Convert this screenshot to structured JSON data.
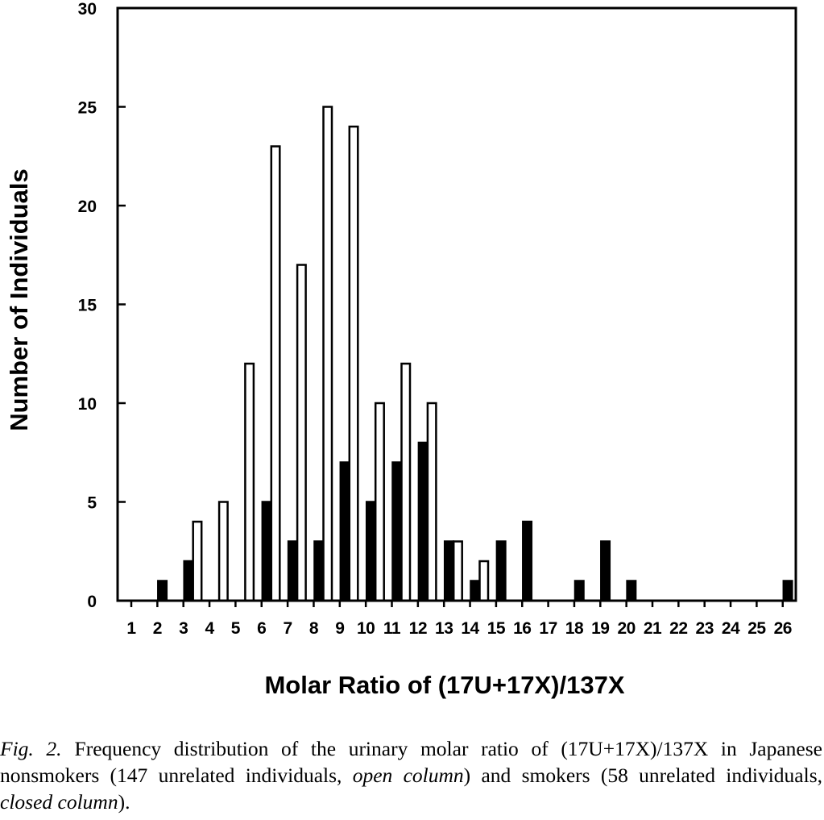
{
  "chart_data": {
    "type": "bar",
    "xlabel": "Molar Ratio of (17U+17X)/137X",
    "ylabel": "Number of Individuals",
    "ylim": [
      0,
      30
    ],
    "yticks": [
      0,
      5,
      10,
      15,
      20,
      25,
      30
    ],
    "categories": [
      "1",
      "2",
      "3",
      "4",
      "5",
      "6",
      "7",
      "8",
      "9",
      "10",
      "11",
      "12",
      "13",
      "14",
      "15",
      "16",
      "17",
      "18",
      "19",
      "20",
      "21",
      "22",
      "23",
      "24",
      "25",
      "26"
    ],
    "grid": false,
    "series": [
      {
        "style": "closed",
        "color": "#000000",
        "values": [
          0,
          1,
          2,
          0,
          0,
          5,
          3,
          3,
          7,
          5,
          7,
          8,
          3,
          1,
          3,
          4,
          0,
          1,
          3,
          1,
          0,
          0,
          0,
          0,
          0,
          1
        ]
      },
      {
        "style": "open",
        "color": "#ffffff",
        "values": [
          0,
          0,
          4,
          5,
          12,
          23,
          17,
          25,
          24,
          10,
          12,
          10,
          3,
          2,
          0,
          0,
          0,
          0,
          0,
          0,
          0,
          0,
          0,
          0,
          0,
          0
        ]
      }
    ]
  },
  "caption": {
    "fig_label": "Fig. 2.",
    "text_1": "Frequency distribution of the urinary molar ratio of (17U+17X)/137X in Japanese nonsmokers (147 unrelated individuals, ",
    "open_label": "open column",
    "text_2": ") and smokers (58 unrelated individuals, ",
    "closed_label": "closed column",
    "text_3": ")."
  }
}
